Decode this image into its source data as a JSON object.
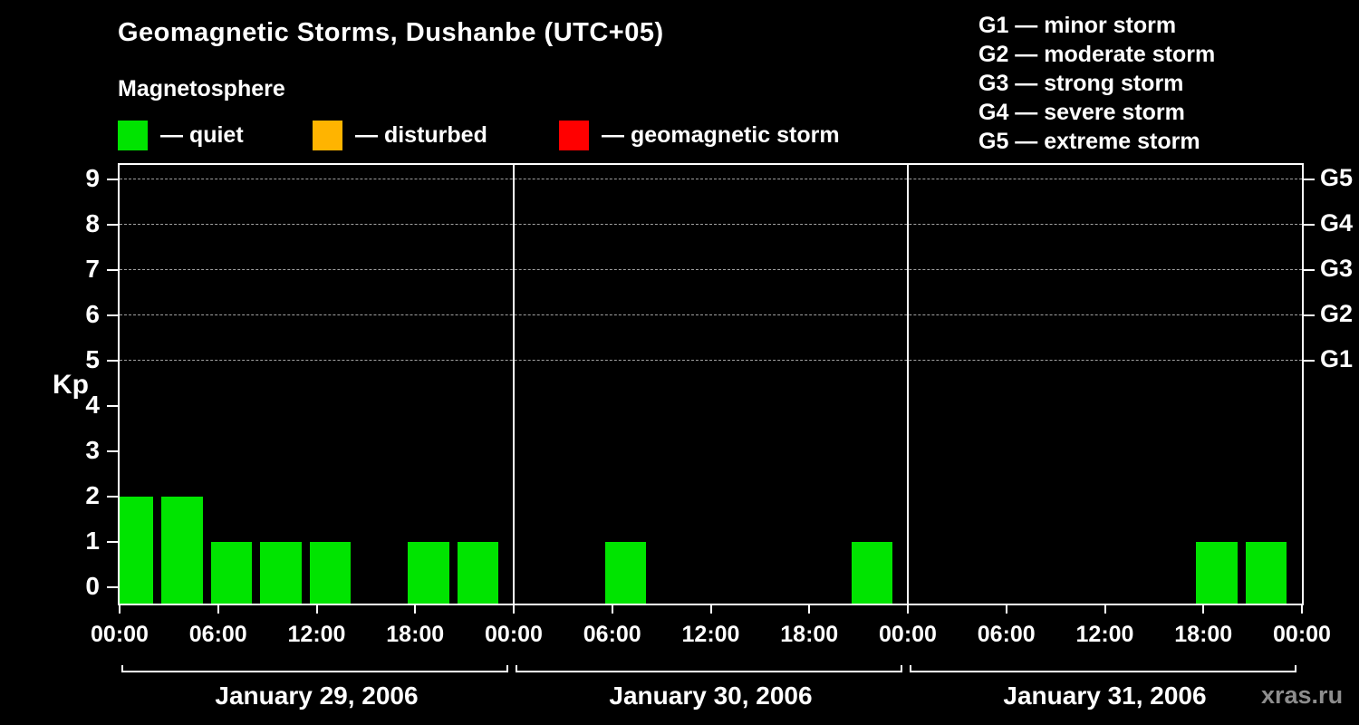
{
  "header": {
    "title": "Geomagnetic Storms, Dushanbe (UTC+05)",
    "subtitle": "Magnetosphere"
  },
  "kp_legend": {
    "items": [
      {
        "name": "quiet",
        "label": "— quiet",
        "color": "#00e400"
      },
      {
        "name": "disturbed",
        "label": "— disturbed",
        "color": "#ffb400"
      },
      {
        "name": "geomagnetic-storm",
        "label": "— geomagnetic storm",
        "color": "#ff0000"
      }
    ]
  },
  "g_legend": {
    "items": [
      "G1 — minor storm",
      "G2 — moderate storm",
      "G3 — strong storm",
      "G4 — severe storm",
      "G5 — extreme storm"
    ]
  },
  "footer": {
    "watermark": "xras.ru"
  },
  "chart_data": {
    "type": "bar",
    "title": "Geomagnetic Storms, Dushanbe (UTC+05)",
    "ylabel": "Kp",
    "ylim": [
      0,
      9
    ],
    "y_ticks": [
      0,
      1,
      2,
      3,
      4,
      5,
      6,
      7,
      8,
      9
    ],
    "grid_dashed_levels": [
      5,
      6,
      7,
      8,
      9
    ],
    "g_levels": [
      {
        "label": "G5",
        "kp": 9
      },
      {
        "label": "G4",
        "kp": 8
      },
      {
        "label": "G3",
        "kp": 7
      },
      {
        "label": "G2",
        "kp": 6
      },
      {
        "label": "G1",
        "kp": 5
      }
    ],
    "x_tick_labels": [
      "00:00",
      "06:00",
      "12:00",
      "18:00"
    ],
    "interval_hours": 3,
    "bar_color": "#00e400",
    "grid_on": true,
    "legend_position": "top",
    "days": [
      {
        "date": "January 29, 2006",
        "kp": [
          2,
          2,
          1,
          1,
          1,
          0,
          1,
          1
        ]
      },
      {
        "date": "January 30, 2006",
        "kp": [
          0,
          0,
          1,
          0,
          0,
          0,
          0,
          1
        ]
      },
      {
        "date": "January 31, 2006",
        "kp": [
          0,
          0,
          0,
          0,
          0,
          0,
          1,
          1
        ]
      }
    ]
  }
}
